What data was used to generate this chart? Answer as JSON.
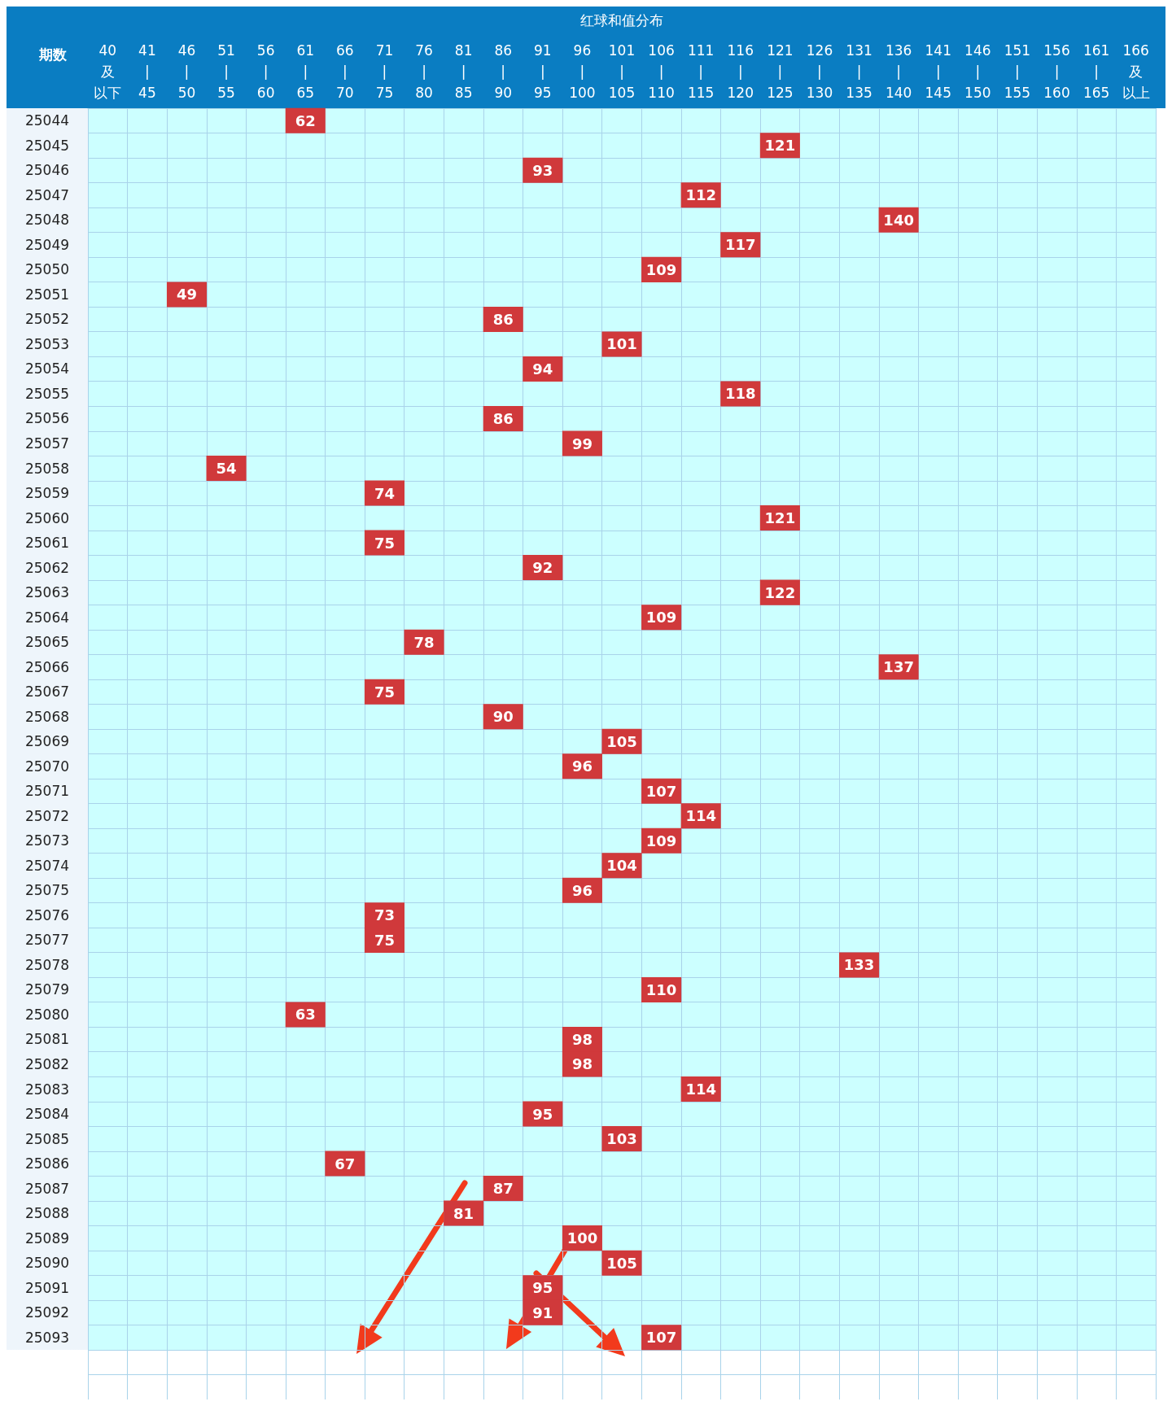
{
  "chart_data": {
    "type": "heatmap",
    "xlabel": "红球和值分布",
    "ylabel": "期数",
    "color": "#d0393b",
    "data_labels": true,
    "grid": true,
    "categories": [
      "40及以下",
      "41\n|\n45",
      "46\n|\n50",
      "51\n|\n55",
      "56\n|\n60",
      "61\n|\n65",
      "66\n|\n70",
      "71\n|\n75",
      "76\n|\n80",
      "81\n|\n85",
      "86\n|\n90",
      "91\n|\n95",
      "96\n|\n100",
      "101\n|\n105",
      "106\n|\n110",
      "111\n|\n115",
      "116\n|\n120",
      "121\n|\n125",
      "126\n|\n130",
      "131\n|\n135",
      "136\n|\n140",
      "141\n|\n145",
      "146\n|\n150",
      "151\n|\n155",
      "156\n|\n160",
      "161\n|\n165",
      "166及以上"
    ],
    "y_categories": [
      "25044",
      "25045",
      "25046",
      "25047",
      "25048",
      "25049",
      "25050",
      "25051",
      "25052",
      "25053",
      "25054",
      "25055",
      "25056",
      "25057",
      "25058",
      "25059",
      "25060",
      "25061",
      "25062",
      "25063",
      "25064",
      "25065",
      "25066",
      "25067",
      "25068",
      "25069",
      "25070",
      "25071",
      "25072",
      "25073",
      "25074",
      "25075",
      "25076",
      "25077",
      "25078",
      "25079",
      "25080",
      "25081",
      "25082",
      "25083",
      "25084",
      "25085",
      "25086",
      "25087",
      "25088",
      "25089",
      "25090",
      "25091",
      "25092",
      "25093"
    ],
    "cells": [
      [
        null,
        null,
        null,
        null,
        null,
        62,
        null,
        null,
        null,
        null,
        null,
        null,
        null,
        null,
        null,
        null,
        null,
        null,
        null,
        null,
        null,
        null,
        null,
        null,
        null,
        null,
        null
      ],
      [
        null,
        null,
        null,
        null,
        null,
        null,
        null,
        null,
        null,
        null,
        null,
        null,
        null,
        null,
        null,
        null,
        null,
        121,
        null,
        null,
        null,
        null,
        null,
        null,
        null,
        null,
        null
      ],
      [
        null,
        null,
        null,
        null,
        null,
        null,
        null,
        null,
        null,
        null,
        null,
        93,
        null,
        null,
        null,
        null,
        null,
        null,
        null,
        null,
        null,
        null,
        null,
        null,
        null,
        null,
        null
      ],
      [
        null,
        null,
        null,
        null,
        null,
        null,
        null,
        null,
        null,
        null,
        null,
        null,
        null,
        null,
        null,
        112,
        null,
        null,
        null,
        null,
        null,
        null,
        null,
        null,
        null,
        null,
        null
      ],
      [
        null,
        null,
        null,
        null,
        null,
        null,
        null,
        null,
        null,
        null,
        null,
        null,
        null,
        null,
        null,
        null,
        null,
        null,
        null,
        null,
        140,
        null,
        null,
        null,
        null,
        null,
        null
      ],
      [
        null,
        null,
        null,
        null,
        null,
        null,
        null,
        null,
        null,
        null,
        null,
        null,
        null,
        null,
        null,
        null,
        117,
        null,
        null,
        null,
        null,
        null,
        null,
        null,
        null,
        null,
        null
      ],
      [
        null,
        null,
        null,
        null,
        null,
        null,
        null,
        null,
        null,
        null,
        null,
        null,
        null,
        null,
        109,
        null,
        null,
        null,
        null,
        null,
        null,
        null,
        null,
        null,
        null,
        null,
        null
      ],
      [
        null,
        null,
        49,
        null,
        null,
        null,
        null,
        null,
        null,
        null,
        null,
        null,
        null,
        null,
        null,
        null,
        null,
        null,
        null,
        null,
        null,
        null,
        null,
        null,
        null,
        null,
        null
      ],
      [
        null,
        null,
        null,
        null,
        null,
        null,
        null,
        null,
        null,
        null,
        86,
        null,
        null,
        null,
        null,
        null,
        null,
        null,
        null,
        null,
        null,
        null,
        null,
        null,
        null,
        null,
        null
      ],
      [
        null,
        null,
        null,
        null,
        null,
        null,
        null,
        null,
        null,
        null,
        null,
        null,
        null,
        101,
        null,
        null,
        null,
        null,
        null,
        null,
        null,
        null,
        null,
        null,
        null,
        null,
        null
      ],
      [
        null,
        null,
        null,
        null,
        null,
        null,
        null,
        null,
        null,
        null,
        null,
        94,
        null,
        null,
        null,
        null,
        null,
        null,
        null,
        null,
        null,
        null,
        null,
        null,
        null,
        null,
        null
      ],
      [
        null,
        null,
        null,
        null,
        null,
        null,
        null,
        null,
        null,
        null,
        null,
        null,
        null,
        null,
        null,
        null,
        118,
        null,
        null,
        null,
        null,
        null,
        null,
        null,
        null,
        null,
        null
      ],
      [
        null,
        null,
        null,
        null,
        null,
        null,
        null,
        null,
        null,
        null,
        86,
        null,
        null,
        null,
        null,
        null,
        null,
        null,
        null,
        null,
        null,
        null,
        null,
        null,
        null,
        null,
        null
      ],
      [
        null,
        null,
        null,
        null,
        null,
        null,
        null,
        null,
        null,
        null,
        null,
        null,
        99,
        null,
        null,
        null,
        null,
        null,
        null,
        null,
        null,
        null,
        null,
        null,
        null,
        null,
        null
      ],
      [
        null,
        null,
        null,
        54,
        null,
        null,
        null,
        null,
        null,
        null,
        null,
        null,
        null,
        null,
        null,
        null,
        null,
        null,
        null,
        null,
        null,
        null,
        null,
        null,
        null,
        null,
        null
      ],
      [
        null,
        null,
        null,
        null,
        null,
        null,
        null,
        74,
        null,
        null,
        null,
        null,
        null,
        null,
        null,
        null,
        null,
        null,
        null,
        null,
        null,
        null,
        null,
        null,
        null,
        null,
        null
      ],
      [
        null,
        null,
        null,
        null,
        null,
        null,
        null,
        null,
        null,
        null,
        null,
        null,
        null,
        null,
        null,
        null,
        null,
        121,
        null,
        null,
        null,
        null,
        null,
        null,
        null,
        null,
        null
      ],
      [
        null,
        null,
        null,
        null,
        null,
        null,
        null,
        75,
        null,
        null,
        null,
        null,
        null,
        null,
        null,
        null,
        null,
        null,
        null,
        null,
        null,
        null,
        null,
        null,
        null,
        null,
        null
      ],
      [
        null,
        null,
        null,
        null,
        null,
        null,
        null,
        null,
        null,
        null,
        null,
        92,
        null,
        null,
        null,
        null,
        null,
        null,
        null,
        null,
        null,
        null,
        null,
        null,
        null,
        null,
        null
      ],
      [
        null,
        null,
        null,
        null,
        null,
        null,
        null,
        null,
        null,
        null,
        null,
        null,
        null,
        null,
        null,
        null,
        null,
        122,
        null,
        null,
        null,
        null,
        null,
        null,
        null,
        null,
        null
      ],
      [
        null,
        null,
        null,
        null,
        null,
        null,
        null,
        null,
        null,
        null,
        null,
        null,
        null,
        null,
        109,
        null,
        null,
        null,
        null,
        null,
        null,
        null,
        null,
        null,
        null,
        null,
        null
      ],
      [
        null,
        null,
        null,
        null,
        null,
        null,
        null,
        null,
        78,
        null,
        null,
        null,
        null,
        null,
        null,
        null,
        null,
        null,
        null,
        null,
        null,
        null,
        null,
        null,
        null,
        null,
        null
      ],
      [
        null,
        null,
        null,
        null,
        null,
        null,
        null,
        null,
        null,
        null,
        null,
        null,
        null,
        null,
        null,
        null,
        null,
        null,
        null,
        null,
        137,
        null,
        null,
        null,
        null,
        null,
        null
      ],
      [
        null,
        null,
        null,
        null,
        null,
        null,
        null,
        75,
        null,
        null,
        null,
        null,
        null,
        null,
        null,
        null,
        null,
        null,
        null,
        null,
        null,
        null,
        null,
        null,
        null,
        null,
        null
      ],
      [
        null,
        null,
        null,
        null,
        null,
        null,
        null,
        null,
        null,
        null,
        90,
        null,
        null,
        null,
        null,
        null,
        null,
        null,
        null,
        null,
        null,
        null,
        null,
        null,
        null,
        null,
        null
      ],
      [
        null,
        null,
        null,
        null,
        null,
        null,
        null,
        null,
        null,
        null,
        null,
        null,
        null,
        105,
        null,
        null,
        null,
        null,
        null,
        null,
        null,
        null,
        null,
        null,
        null,
        null,
        null
      ],
      [
        null,
        null,
        null,
        null,
        null,
        null,
        null,
        null,
        null,
        null,
        null,
        null,
        96,
        null,
        null,
        null,
        null,
        null,
        null,
        null,
        null,
        null,
        null,
        null,
        null,
        null,
        null
      ],
      [
        null,
        null,
        null,
        null,
        null,
        null,
        null,
        null,
        null,
        null,
        null,
        null,
        null,
        null,
        107,
        null,
        null,
        null,
        null,
        null,
        null,
        null,
        null,
        null,
        null,
        null,
        null
      ],
      [
        null,
        null,
        null,
        null,
        null,
        null,
        null,
        null,
        null,
        null,
        null,
        null,
        null,
        null,
        null,
        114,
        null,
        null,
        null,
        null,
        null,
        null,
        null,
        null,
        null,
        null,
        null
      ],
      [
        null,
        null,
        null,
        null,
        null,
        null,
        null,
        null,
        null,
        null,
        null,
        null,
        null,
        null,
        109,
        null,
        null,
        null,
        null,
        null,
        null,
        null,
        null,
        null,
        null,
        null,
        null
      ],
      [
        null,
        null,
        null,
        null,
        null,
        null,
        null,
        null,
        null,
        null,
        null,
        null,
        null,
        104,
        null,
        null,
        null,
        null,
        null,
        null,
        null,
        null,
        null,
        null,
        null,
        null,
        null
      ],
      [
        null,
        null,
        null,
        null,
        null,
        null,
        null,
        null,
        null,
        null,
        null,
        null,
        96,
        null,
        null,
        null,
        null,
        null,
        null,
        null,
        null,
        null,
        null,
        null,
        null,
        null,
        null
      ],
      [
        null,
        null,
        null,
        null,
        null,
        null,
        null,
        73,
        null,
        null,
        null,
        null,
        null,
        null,
        null,
        null,
        null,
        null,
        null,
        null,
        null,
        null,
        null,
        null,
        null,
        null,
        null
      ],
      [
        null,
        null,
        null,
        null,
        null,
        null,
        null,
        75,
        null,
        null,
        null,
        null,
        null,
        null,
        null,
        null,
        null,
        null,
        null,
        null,
        null,
        null,
        null,
        null,
        null,
        null,
        null
      ],
      [
        null,
        null,
        null,
        null,
        null,
        null,
        null,
        null,
        null,
        null,
        null,
        null,
        null,
        null,
        null,
        null,
        null,
        null,
        null,
        133,
        null,
        null,
        null,
        null,
        null,
        null,
        null
      ],
      [
        null,
        null,
        null,
        null,
        null,
        null,
        null,
        null,
        null,
        null,
        null,
        null,
        null,
        null,
        110,
        null,
        null,
        null,
        null,
        null,
        null,
        null,
        null,
        null,
        null,
        null,
        null
      ],
      [
        null,
        null,
        null,
        null,
        null,
        63,
        null,
        null,
        null,
        null,
        null,
        null,
        null,
        null,
        null,
        null,
        null,
        null,
        null,
        null,
        null,
        null,
        null,
        null,
        null,
        null,
        null
      ],
      [
        null,
        null,
        null,
        null,
        null,
        null,
        null,
        null,
        null,
        null,
        null,
        null,
        98,
        null,
        null,
        null,
        null,
        null,
        null,
        null,
        null,
        null,
        null,
        null,
        null,
        null,
        null
      ],
      [
        null,
        null,
        null,
        null,
        null,
        null,
        null,
        null,
        null,
        null,
        null,
        null,
        98,
        null,
        null,
        null,
        null,
        null,
        null,
        null,
        null,
        null,
        null,
        null,
        null,
        null,
        null
      ],
      [
        null,
        null,
        null,
        null,
        null,
        null,
        null,
        null,
        null,
        null,
        null,
        null,
        null,
        null,
        null,
        114,
        null,
        null,
        null,
        null,
        null,
        null,
        null,
        null,
        null,
        null,
        null
      ],
      [
        null,
        null,
        null,
        null,
        null,
        null,
        null,
        null,
        null,
        null,
        null,
        95,
        null,
        null,
        null,
        null,
        null,
        null,
        null,
        null,
        null,
        null,
        null,
        null,
        null,
        null,
        null
      ],
      [
        null,
        null,
        null,
        null,
        null,
        null,
        null,
        null,
        null,
        null,
        null,
        null,
        null,
        103,
        null,
        null,
        null,
        null,
        null,
        null,
        null,
        null,
        null,
        null,
        null,
        null,
        null
      ],
      [
        null,
        null,
        null,
        null,
        null,
        null,
        67,
        null,
        null,
        null,
        null,
        null,
        null,
        null,
        null,
        null,
        null,
        null,
        null,
        null,
        null,
        null,
        null,
        null,
        null,
        null,
        null
      ],
      [
        null,
        null,
        null,
        null,
        null,
        null,
        null,
        null,
        null,
        null,
        87,
        null,
        null,
        null,
        null,
        null,
        null,
        null,
        null,
        null,
        null,
        null,
        null,
        null,
        null,
        null,
        null
      ],
      [
        null,
        null,
        null,
        null,
        null,
        null,
        null,
        null,
        null,
        81,
        null,
        null,
        null,
        null,
        null,
        null,
        null,
        null,
        null,
        null,
        null,
        null,
        null,
        null,
        null,
        null,
        null
      ],
      [
        null,
        null,
        null,
        null,
        null,
        null,
        null,
        null,
        null,
        null,
        null,
        null,
        100,
        null,
        null,
        null,
        null,
        null,
        null,
        null,
        null,
        null,
        null,
        null,
        null,
        null,
        null
      ],
      [
        null,
        null,
        null,
        null,
        null,
        null,
        null,
        null,
        null,
        null,
        null,
        null,
        null,
        105,
        null,
        null,
        null,
        null,
        null,
        null,
        null,
        null,
        null,
        null,
        null,
        null,
        null
      ],
      [
        null,
        null,
        null,
        null,
        null,
        null,
        null,
        null,
        null,
        null,
        null,
        95,
        null,
        null,
        null,
        null,
        null,
        null,
        null,
        null,
        null,
        null,
        null,
        null,
        null,
        null,
        null
      ],
      [
        null,
        null,
        null,
        null,
        null,
        null,
        null,
        null,
        null,
        null,
        null,
        91,
        null,
        null,
        null,
        null,
        null,
        null,
        null,
        null,
        null,
        null,
        null,
        null,
        null,
        null,
        null
      ],
      [
        null,
        null,
        null,
        null,
        null,
        null,
        null,
        null,
        null,
        null,
        null,
        null,
        null,
        null,
        107,
        null,
        null,
        null,
        null,
        null,
        null,
        null,
        null,
        null,
        null,
        null,
        null
      ]
    ]
  }
}
